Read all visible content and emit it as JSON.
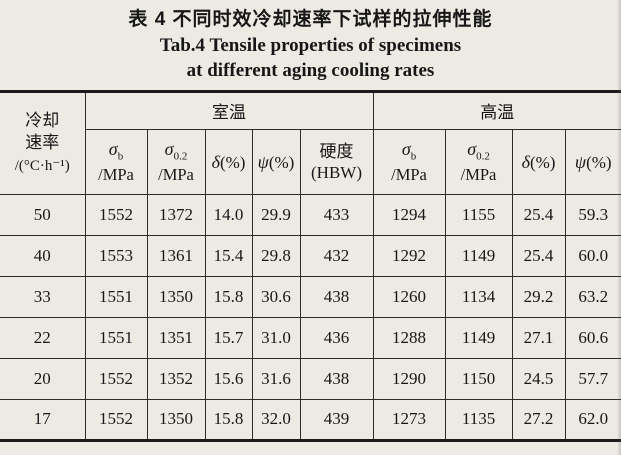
{
  "caption": {
    "zh": "表 4  不同时效冷却速率下试样的拉伸性能",
    "en_line1": "Tab.4  Tensile properties of specimens",
    "en_line2": "at different aging cooling rates"
  },
  "table": {
    "corner_header": {
      "line1": "冷却",
      "line2": "速率",
      "line3": "/(°C·h⁻¹)"
    },
    "groups": [
      {
        "label": "室温"
      },
      {
        "label": "高温"
      }
    ],
    "sub_headers": [
      {
        "sym": "σ",
        "sub": "b",
        "unit": "/MPa"
      },
      {
        "sym": "σ",
        "sub": "0.2",
        "unit": "/MPa"
      },
      {
        "sym": "δ",
        "sub": "",
        "unit": "(%)"
      },
      {
        "sym": "ψ",
        "sub": "",
        "unit": "(%)"
      },
      {
        "line1": "硬度",
        "line2": "(HBW)"
      },
      {
        "sym": "σ",
        "sub": "b",
        "unit": "/MPa"
      },
      {
        "sym": "σ",
        "sub": "0.2",
        "unit": "/MPa"
      },
      {
        "sym": "δ",
        "sub": "",
        "unit": "(%)"
      },
      {
        "sym": "ψ",
        "sub": "",
        "unit": "(%)"
      }
    ],
    "rows": [
      [
        "50",
        "1552",
        "1372",
        "14.0",
        "29.9",
        "433",
        "1294",
        "1155",
        "25.4",
        "59.3"
      ],
      [
        "40",
        "1553",
        "1361",
        "15.4",
        "29.8",
        "432",
        "1292",
        "1149",
        "25.4",
        "60.0"
      ],
      [
        "33",
        "1551",
        "1350",
        "15.8",
        "30.6",
        "438",
        "1260",
        "1134",
        "29.2",
        "63.2"
      ],
      [
        "22",
        "1551",
        "1351",
        "15.7",
        "31.0",
        "436",
        "1288",
        "1149",
        "27.1",
        "60.6"
      ],
      [
        "20",
        "1552",
        "1352",
        "15.6",
        "31.6",
        "438",
        "1290",
        "1150",
        "24.5",
        "57.7"
      ],
      [
        "17",
        "1552",
        "1350",
        "15.8",
        "32.0",
        "439",
        "1273",
        "1135",
        "27.2",
        "62.0"
      ]
    ]
  }
}
